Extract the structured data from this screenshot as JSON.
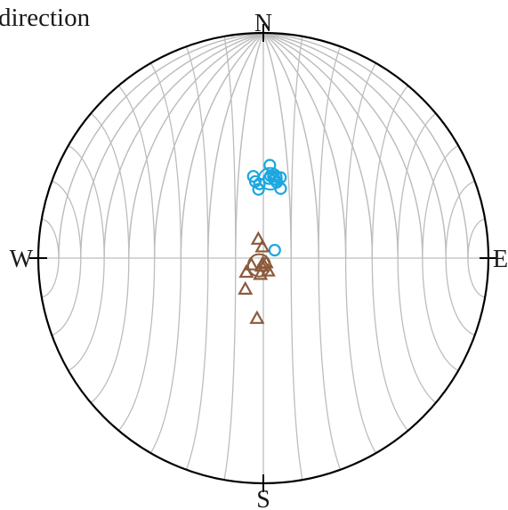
{
  "title": "direction",
  "chart_data": {
    "type": "scatter",
    "projection": "equal-area stereonet (lower hemisphere)",
    "grid": true,
    "grid_spacing_deg": 10,
    "directions": {
      "north": "N",
      "south": "S",
      "east": "E",
      "west": "W"
    },
    "colors": {
      "frame": "#000000",
      "grid": "#bdbdbd",
      "series_1": "#1ba7e0",
      "series_2": "#8b5a3c"
    },
    "series": [
      {
        "marker": "circle",
        "color": "#1ba7e0",
        "points": [
          {
            "dec": 14,
            "inc": 64
          },
          {
            "dec": 4,
            "inc": 56
          },
          {
            "dec": 8,
            "inc": 61
          },
          {
            "dec": 4,
            "inc": 61
          },
          {
            "dec": 9,
            "inc": 60
          },
          {
            "dec": 7,
            "inc": 60
          },
          {
            "dec": 5,
            "inc": 60
          },
          {
            "dec": 12,
            "inc": 60
          },
          {
            "dec": 10,
            "inc": 62
          },
          {
            "dec": 354,
            "inc": 62
          },
          {
            "dec": 356,
            "inc": 65
          },
          {
            "dec": 357,
            "inc": 63
          },
          {
            "dec": 353,
            "inc": 60
          },
          {
            "dec": 55,
            "inc": 85
          }
        ],
        "mean": {
          "dec": 5,
          "inc": 61
        },
        "confidence_cone_deg": 4
      },
      {
        "marker": "triangle",
        "color": "#8b5a3c",
        "points": [
          {
            "dec": 345,
            "inc": 83
          },
          {
            "dec": 355,
            "inc": 86
          },
          {
            "dec": 190,
            "inc": 87
          },
          {
            "dec": 185,
            "inc": 88
          },
          {
            "dec": 150,
            "inc": 88
          },
          {
            "dec": 230,
            "inc": 82
          },
          {
            "dec": 240,
            "inc": 85
          },
          {
            "dec": 210,
            "inc": 77
          },
          {
            "dec": 186,
            "inc": 68
          },
          {
            "dec": 190,
            "inc": 84
          },
          {
            "dec": 160,
            "inc": 85
          }
        ],
        "mean": {
          "dec": 210,
          "inc": 87
        },
        "confidence_cone_deg": 4
      }
    ]
  }
}
